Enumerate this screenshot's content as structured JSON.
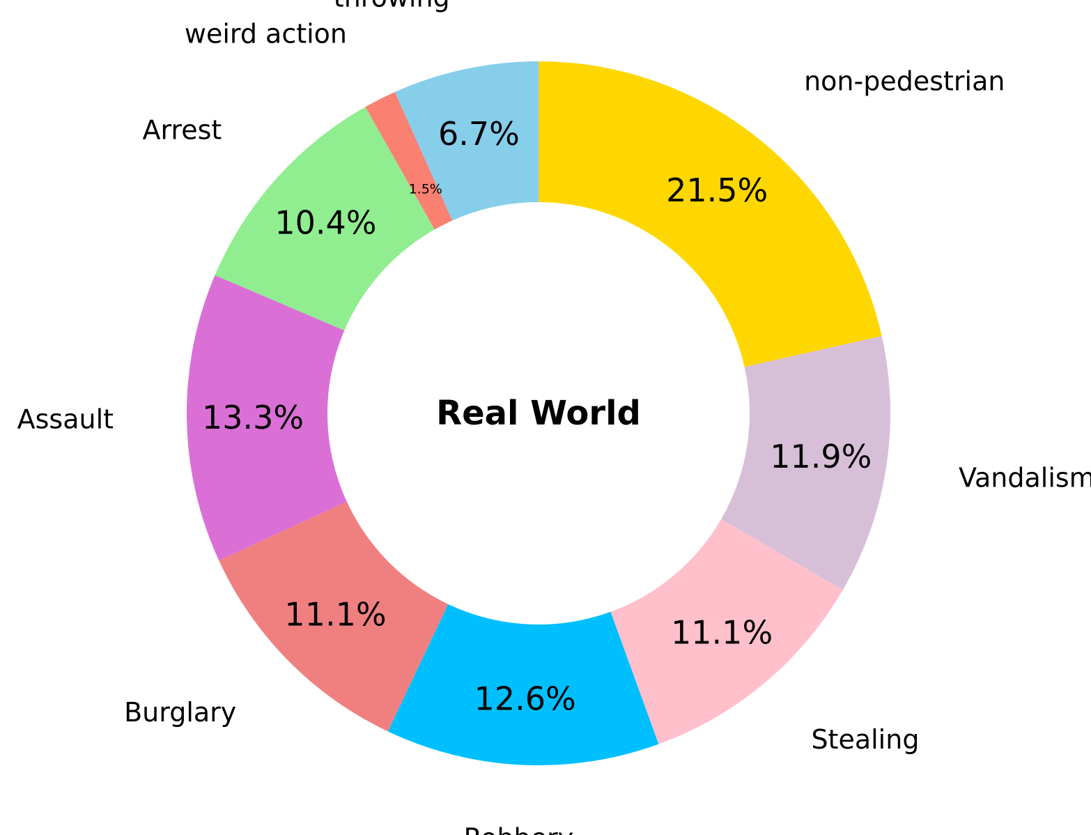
{
  "chart_data": {
    "type": "pie",
    "donut": true,
    "center_label": "Real World",
    "start_angle_deg": 90,
    "direction": "clockwise",
    "slices": [
      {
        "label": "non-pedestrian",
        "value": 21.5,
        "pct_text": "21.5%",
        "color": "#FFD700"
      },
      {
        "label": "Vandalism",
        "value": 11.9,
        "pct_text": "11.9%",
        "color": "#D8BFD8"
      },
      {
        "label": "Stealing",
        "value": 11.1,
        "pct_text": "11.1%",
        "color": "#FFC0CB"
      },
      {
        "label": "Robbery",
        "value": 12.6,
        "pct_text": "12.6%",
        "color": "#00BFFF"
      },
      {
        "label": "Burglary",
        "value": 11.1,
        "pct_text": "11.1%",
        "color": "#F08080"
      },
      {
        "label": "Assault",
        "value": 13.3,
        "pct_text": "13.3%",
        "color": "#DA70D6"
      },
      {
        "label": "Arrest",
        "value": 10.4,
        "pct_text": "10.4%",
        "color": "#90EE90"
      },
      {
        "label": "weird action",
        "value": 1.5,
        "pct_text": "1.5%",
        "color": "#FA8072"
      },
      {
        "label": "throwing",
        "value": 6.7,
        "pct_text": "6.7%",
        "color": "#87CEEB"
      }
    ],
    "legend": "none"
  }
}
